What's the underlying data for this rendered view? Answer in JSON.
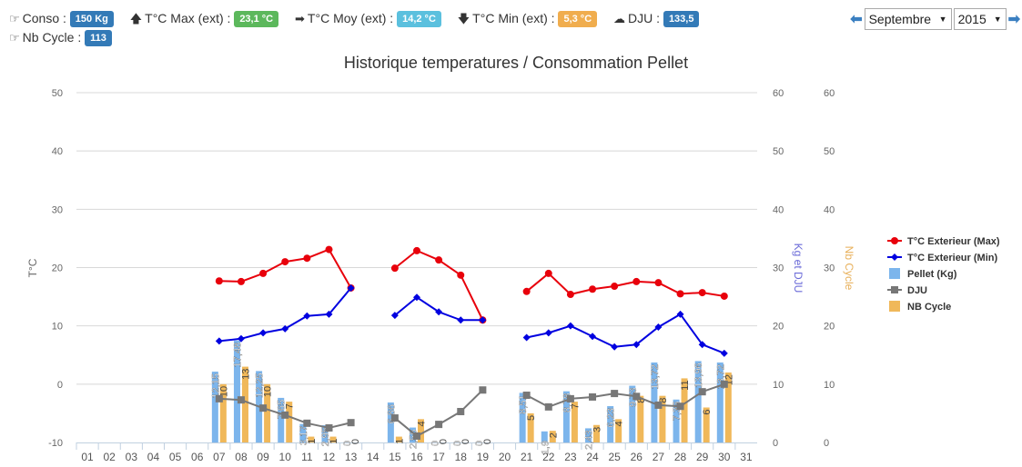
{
  "stats": {
    "conso_label": "Conso :",
    "conso_value": "150 Kg",
    "tmax_label": "T°C Max (ext) :",
    "tmax_value": "23,1 °C",
    "tmoy_label": "T°C Moy (ext) :",
    "tmoy_value": "14,2 °C",
    "tmin_label": "T°C Min (ext) :",
    "tmin_value": "5,3 °C",
    "dju_label": "DJU :",
    "dju_value": "133,5",
    "cycle_label": "Nb Cycle :",
    "cycle_value": "113"
  },
  "colors": {
    "blue_badge": "#337ab7",
    "green_badge": "#5cb85c",
    "cyan_badge": "#5bc0de",
    "orange_badge": "#f0ad4e",
    "max": "#e8000b",
    "min": "#0000e0",
    "pellet": "#7cb5ec",
    "dju": "#777777",
    "cycle": "#f0b85a"
  },
  "nav": {
    "month": "Septembre",
    "year": "2015"
  },
  "chart_data": {
    "type": "combo",
    "title": "Historique temperatures / Consommation Pellet",
    "ylabel": "T°C",
    "y2label": "Kg et DJU",
    "y3label": "Nb Cycle",
    "ylim": [
      -10,
      50
    ],
    "y2lim": [
      0,
      60
    ],
    "y3lim": [
      0,
      60
    ],
    "yticks": [
      "-10",
      "0",
      "10",
      "20",
      "30",
      "40",
      "50"
    ],
    "y2ticks": [
      "0",
      "10",
      "20",
      "30",
      "40",
      "50",
      "60"
    ],
    "y3ticks": [
      "0",
      "10",
      "20",
      "30",
      "40",
      "50",
      "60"
    ],
    "categories": [
      "01",
      "02",
      "03",
      "04",
      "05",
      "06",
      "07",
      "08",
      "09",
      "10",
      "11",
      "12",
      "13",
      "14",
      "15",
      "16",
      "17",
      "18",
      "19",
      "20",
      "21",
      "22",
      "23",
      "24",
      "25",
      "26",
      "27",
      "28",
      "29",
      "30",
      "31"
    ],
    "legend_position": "right",
    "series": [
      {
        "name": "T°C Exterieur (Max)",
        "type": "line",
        "values": [
          null,
          null,
          null,
          null,
          null,
          null,
          17.7,
          17.6,
          19,
          21,
          21.6,
          23.1,
          16.5,
          null,
          19.9,
          22.9,
          21.3,
          18.7,
          11,
          null,
          15.9,
          19,
          15.4,
          16.3,
          16.8,
          17.6,
          17.4,
          15.5,
          15.7,
          15.1,
          null
        ]
      },
      {
        "name": "T°C Exterieur (Min)",
        "type": "line",
        "values": [
          null,
          null,
          null,
          null,
          null,
          null,
          7.4,
          7.8,
          8.8,
          9.5,
          11.7,
          12,
          16.5,
          null,
          11.8,
          14.9,
          12.4,
          11,
          11,
          null,
          8,
          8.8,
          10,
          8.2,
          6.4,
          6.8,
          9.8,
          12,
          6.8,
          5.3,
          null
        ]
      },
      {
        "name": "Pellet (Kg)",
        "type": "bar",
        "values": [
          null,
          null,
          null,
          null,
          null,
          null,
          12.15,
          17.48,
          12.25,
          7.65,
          3.17,
          2.95,
          0,
          null,
          6.86,
          2.56,
          0,
          0,
          0,
          null,
          8.51,
          1.9,
          8.78,
          2.43,
          6.23,
          9.73,
          13.72,
          7.36,
          13.96,
          13.72,
          null
        ],
        "labels": [
          "",
          "",
          "",
          "",
          "",
          "",
          "12,15",
          "17,48",
          "12,25",
          "7,65",
          "3,17",
          "2,95",
          "0",
          "",
          "6,86",
          "2,56",
          "0",
          "0",
          "0",
          "",
          "8,51",
          "1,9",
          "8,78",
          "2,43",
          "6,23",
          "9,73",
          "13,72",
          "7,36",
          "13,96",
          "13,72",
          ""
        ]
      },
      {
        "name": "DJU",
        "type": "line",
        "values": [
          null,
          null,
          null,
          null,
          null,
          null,
          7.5,
          7.3,
          5.9,
          4.7,
          3.3,
          2.5,
          3.4,
          null,
          4.2,
          1.1,
          3.1,
          5.3,
          9,
          null,
          8.1,
          6.1,
          7.5,
          7.8,
          8.4,
          7.9,
          6.4,
          6.2,
          8.7,
          10,
          null
        ]
      },
      {
        "name": "NB Cycle",
        "type": "bar",
        "values": [
          null,
          null,
          null,
          null,
          null,
          null,
          10,
          13,
          10,
          7,
          1,
          1,
          0,
          null,
          1,
          4,
          0,
          0,
          0,
          null,
          5,
          2,
          7,
          3,
          4,
          8,
          8,
          11,
          6,
          12,
          null
        ]
      }
    ]
  }
}
